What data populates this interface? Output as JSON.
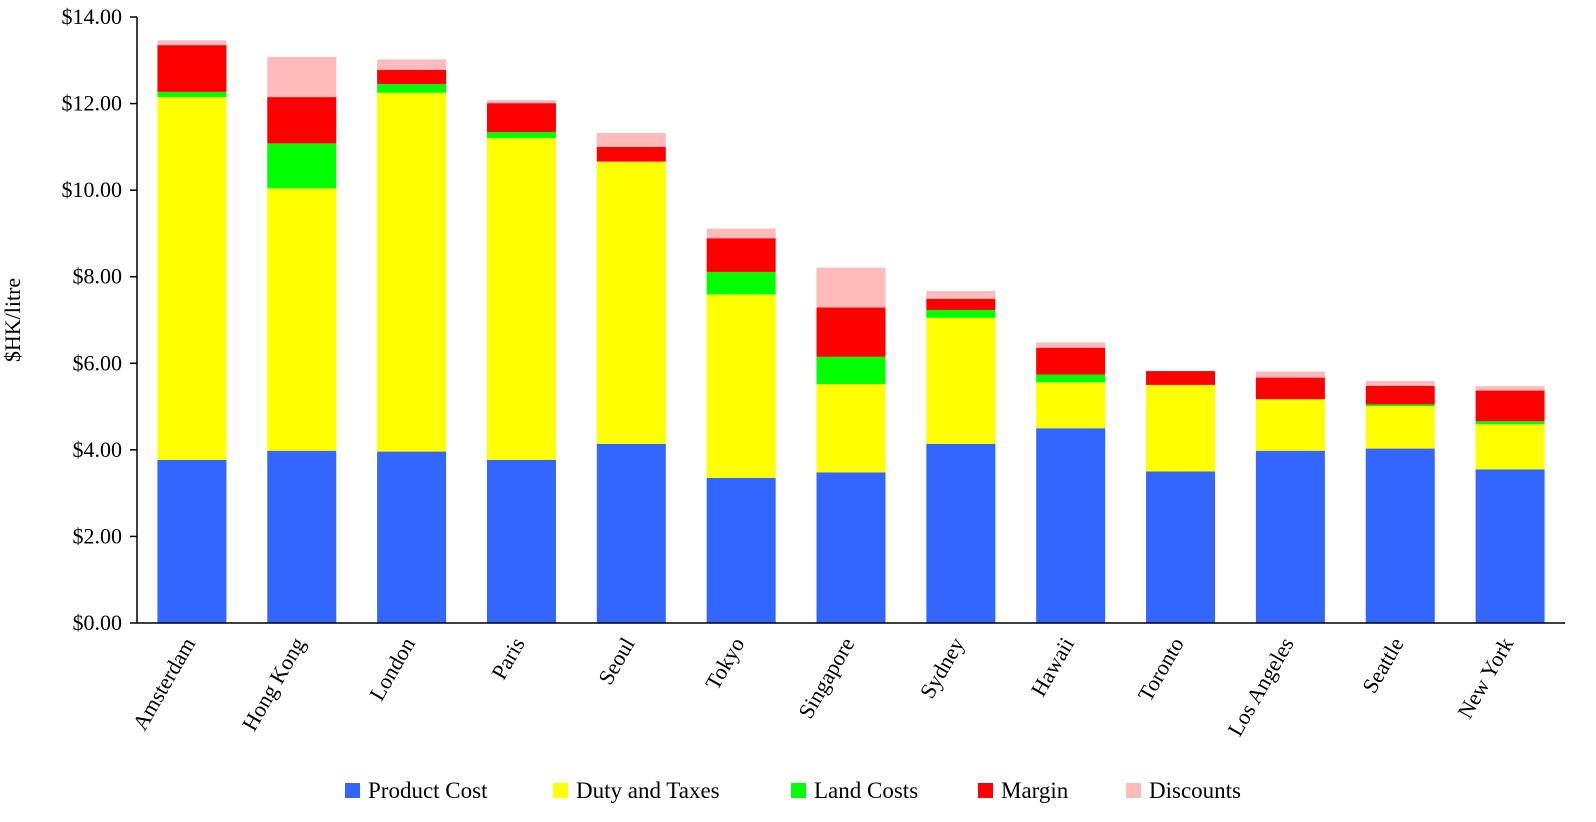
{
  "chart_data": {
    "type": "bar",
    "stacked": true,
    "ylabel": "$HK/litre",
    "xlabel": "",
    "ylim": [
      0,
      14
    ],
    "yticks": [
      0,
      2,
      4,
      6,
      8,
      10,
      12,
      14
    ],
    "ytick_labels": [
      "$0.00",
      "$2.00",
      "$4.00",
      "$6.00",
      "$8.00",
      "$10.00",
      "$12.00",
      "$14.00"
    ],
    "grid": false,
    "legend_position": "bottom",
    "categories": [
      "Amsterdam",
      "Hong Kong",
      "London",
      "Paris",
      "Seoul",
      "Tokyo",
      "Singapore",
      "Sydney",
      "Hawaii",
      "Toronto",
      "Los Angeles",
      "Seattle",
      "New York"
    ],
    "series": [
      {
        "name": "Product Cost",
        "color": "#3366FF",
        "values": [
          3.77,
          3.98,
          3.96,
          3.77,
          4.14,
          3.35,
          3.48,
          4.14,
          4.5,
          3.5,
          3.98,
          4.03,
          3.55
        ]
      },
      {
        "name": "Duty and Taxes",
        "color": "#FFFF00",
        "values": [
          8.38,
          6.06,
          8.29,
          7.43,
          6.52,
          4.24,
          2.04,
          2.91,
          1.06,
          2.0,
          1.19,
          0.98,
          1.04
        ]
      },
      {
        "name": "Land Costs",
        "color": "#00FF00",
        "values": [
          0.12,
          1.04,
          0.2,
          0.14,
          0.0,
          0.52,
          0.63,
          0.18,
          0.18,
          0.0,
          0.0,
          0.04,
          0.07
        ]
      },
      {
        "name": "Margin",
        "color": "#FF0000",
        "values": [
          1.08,
          1.07,
          0.33,
          0.67,
          0.34,
          0.78,
          1.14,
          0.26,
          0.62,
          0.32,
          0.5,
          0.43,
          0.71
        ]
      },
      {
        "name": "Discounts",
        "color": "#FFBBBB",
        "values": [
          0.11,
          0.93,
          0.24,
          0.07,
          0.32,
          0.22,
          0.92,
          0.18,
          0.12,
          0.0,
          0.14,
          0.11,
          0.1
        ]
      }
    ]
  }
}
